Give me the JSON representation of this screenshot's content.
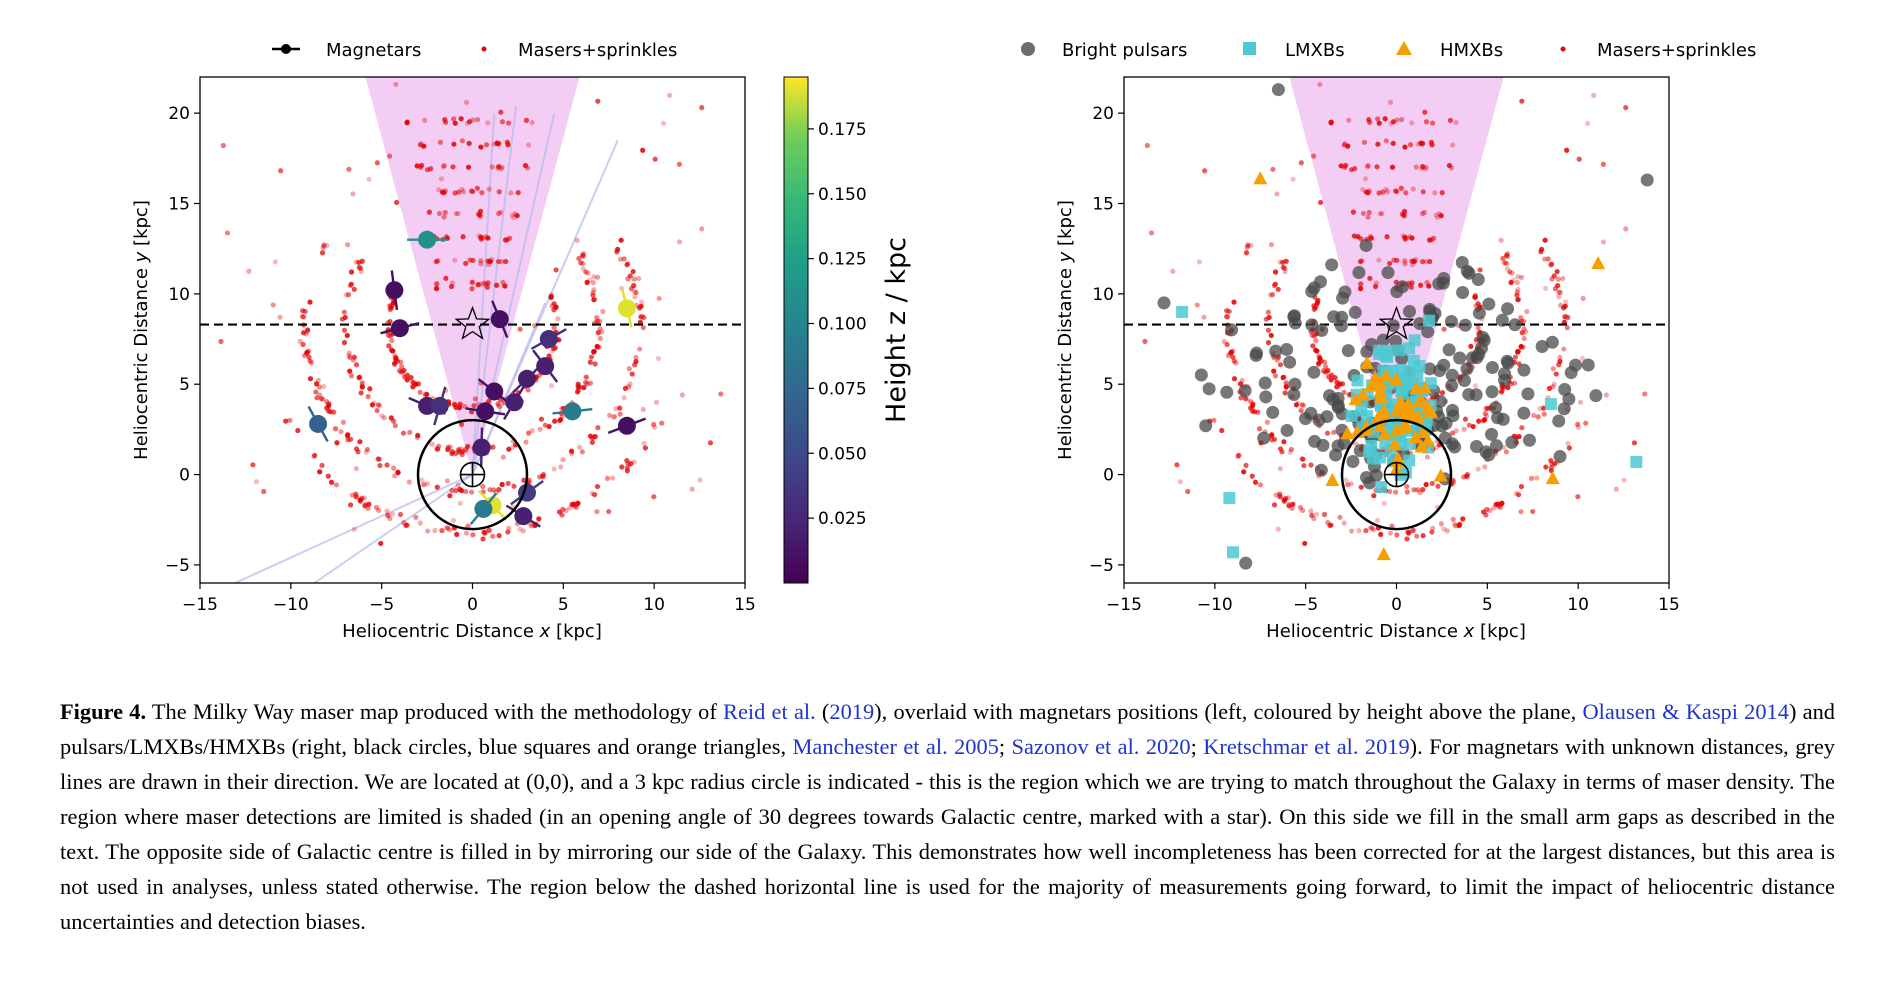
{
  "chart_data": [
    {
      "type": "scatter",
      "panel": "left",
      "xlabel_pre": "Heliocentric Distance ",
      "xlabel_var": "x",
      "xlabel_post": " [kpc]",
      "ylabel_pre": "Heliocentric Distance ",
      "ylabel_var": "y",
      "ylabel_post": " [kpc]",
      "xlim": [
        -15,
        15
      ],
      "ylim": [
        -6,
        22
      ],
      "xticks": [
        -15,
        -10,
        -5,
        0,
        5,
        10,
        15
      ],
      "yticks": [
        -5,
        0,
        5,
        10,
        15,
        20
      ],
      "legend": [
        "Magnetars",
        "Masers+sprinkles"
      ],
      "legend_placement": "above",
      "colorbar": {
        "label": "Height z / kpc",
        "range": [
          0.0,
          0.195
        ],
        "ticks": [
          0.025,
          0.05,
          0.075,
          0.1,
          0.125,
          0.15,
          0.175
        ],
        "colormap": "viridis"
      },
      "dashed_line_y": 8.3,
      "galactic_centre": [
        0,
        8.3
      ],
      "sun_position": [
        0,
        0
      ],
      "sun_circle_radius_kpc": 3,
      "shaded_wedge_opening_deg": 30,
      "magnetars": [
        {
          "x": -2.5,
          "y": 13.0,
          "z": 0.11
        },
        {
          "x": -4.3,
          "y": 10.2,
          "z": 0.01
        },
        {
          "x": -4.0,
          "y": 8.1,
          "z": 0.01
        },
        {
          "x": 1.5,
          "y": 8.6,
          "z": 0.01
        },
        {
          "x": 4.2,
          "y": 7.5,
          "z": 0.03
        },
        {
          "x": 4.0,
          "y": 6.0,
          "z": 0.02
        },
        {
          "x": 3.0,
          "y": 5.3,
          "z": 0.02
        },
        {
          "x": 1.2,
          "y": 4.6,
          "z": 0.01
        },
        {
          "x": 2.3,
          "y": 4.0,
          "z": 0.02
        },
        {
          "x": -2.5,
          "y": 3.8,
          "z": 0.02
        },
        {
          "x": -1.8,
          "y": 3.8,
          "z": 0.03
        },
        {
          "x": 0.7,
          "y": 3.5,
          "z": 0.01
        },
        {
          "x": 0.5,
          "y": 1.5,
          "z": 0.02
        },
        {
          "x": 5.5,
          "y": 3.5,
          "z": 0.09
        },
        {
          "x": 8.5,
          "y": 9.2,
          "z": 0.19
        },
        {
          "x": 8.5,
          "y": 2.7,
          "z": 0.01
        },
        {
          "x": -8.5,
          "y": 2.8,
          "z": 0.07
        },
        {
          "x": 3.0,
          "y": -1.0,
          "z": 0.04
        },
        {
          "x": 1.1,
          "y": -1.7,
          "z": 0.19
        },
        {
          "x": 0.6,
          "y": -1.9,
          "z": 0.09
        },
        {
          "x": 2.8,
          "y": -2.3,
          "z": 0.02
        }
      ]
    },
    {
      "type": "scatter",
      "panel": "right",
      "xlabel_pre": "Heliocentric Distance ",
      "xlabel_var": "x",
      "xlabel_post": " [kpc]",
      "ylabel_pre": "Heliocentric Distance ",
      "ylabel_var": "y",
      "ylabel_post": " [kpc]",
      "xlim": [
        -15,
        15
      ],
      "ylim": [
        -6,
        22
      ],
      "xticks": [
        -15,
        -10,
        -5,
        0,
        5,
        10,
        15
      ],
      "yticks": [
        -5,
        0,
        5,
        10,
        15,
        20
      ],
      "legend": [
        "Bright pulsars",
        "LMXBs",
        "HMXBs",
        "Masers+sprinkles"
      ],
      "legend_placement": "above",
      "dashed_line_y": 8.3,
      "galactic_centre": [
        0,
        8.3
      ],
      "sun_position": [
        0,
        0
      ],
      "sun_circle_radius_kpc": 3,
      "shaded_wedge_opening_deg": 30,
      "outliers_pulsars": [
        {
          "x": 13.8,
          "y": 16.3
        },
        {
          "x": -12.8,
          "y": 9.5
        },
        {
          "x": -10.5,
          "y": 2.7
        },
        {
          "x": -8.3,
          "y": -4.9
        },
        {
          "x": -6.5,
          "y": 21.3
        },
        {
          "x": 9.0,
          "y": 1.0
        }
      ],
      "outliers_lmxbs": [
        {
          "x": 13.2,
          "y": 0.7
        },
        {
          "x": -11.8,
          "y": 9.0
        },
        {
          "x": -9.0,
          "y": -4.3
        },
        {
          "x": -9.2,
          "y": -1.3
        },
        {
          "x": 8.5,
          "y": 3.9
        }
      ],
      "outliers_hmxbs": [
        {
          "x": 11.1,
          "y": 11.7
        },
        {
          "x": -7.5,
          "y": 16.4
        },
        {
          "x": -0.7,
          "y": -4.4
        },
        {
          "x": 8.6,
          "y": -0.2
        }
      ]
    }
  ],
  "caption": {
    "label": "Figure 4.",
    "t1": " The Milky Way maser map produced with the methodology of ",
    "r1": "Reid et al.",
    "t2": " (",
    "r2": "2019",
    "t3": "), overlaid with magnetars positions (left, coloured by height above the plane, ",
    "r3": "Olausen & Kaspi 2014",
    "t4": ") and pulsars/LMXBs/HMXBs (right, black circles, blue squares and orange triangles, ",
    "r4": "Manchester et al. 2005",
    "t5": "; ",
    "r5": "Sazonov et al. 2020",
    "t6": "; ",
    "r6": "Kretschmar et al. 2019",
    "t7": "). For magnetars with unknown distances, grey lines are drawn in their direction. We are located at (0,0), and a 3 kpc radius circle is indicated - this is the region which we are trying to match throughout the Galaxy in terms of maser density. The region where maser detections are limited is shaded (in an opening angle of 30 degrees towards Galactic centre, marked with a star). On this side we fill in the small arm gaps as described in the text. The opposite side of Galactic centre is filled in by mirroring our side of the Galaxy. This demonstrates how well incompleteness has been corrected for at the largest distances, but this area is not used in analyses, unless stated otherwise. The region below the dashed horizontal line is used for the majority of measurements going forward, to limit the impact of heliocentric distance uncertainties and detection biases."
  }
}
